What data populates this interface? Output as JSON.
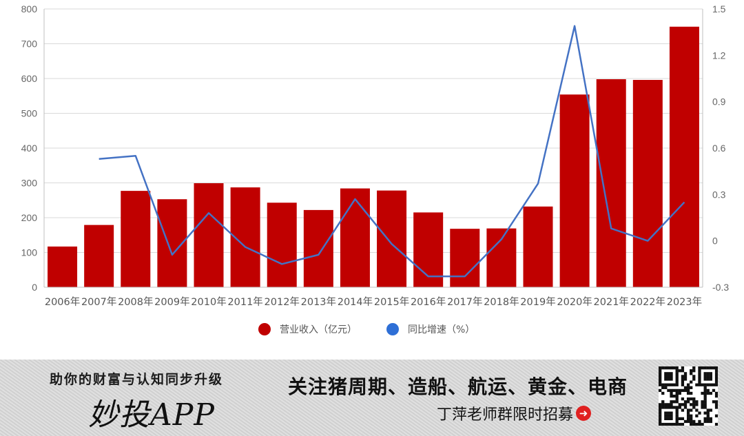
{
  "chart_data": {
    "type": "bar+line",
    "categories": [
      "2006年",
      "2007年",
      "2008年",
      "2009年",
      "2010年",
      "2011年",
      "2012年",
      "2013年",
      "2014年",
      "2015年",
      "2016年",
      "2017年",
      "2018年",
      "2019年",
      "2020年",
      "2021年",
      "2022年",
      "2023年"
    ],
    "series": [
      {
        "name": "营业收入（亿元）",
        "type": "bar",
        "axis": "left",
        "color": "#c00000",
        "values": [
          117,
          179,
          277,
          253,
          299,
          287,
          243,
          222,
          284,
          278,
          215,
          168,
          169,
          232,
          554,
          598,
          596,
          749
        ]
      },
      {
        "name": "同比增速（%）",
        "type": "line",
        "axis": "right",
        "color": "#4472c4",
        "values": [
          null,
          0.53,
          0.55,
          -0.09,
          0.18,
          -0.04,
          -0.15,
          -0.09,
          0.27,
          -0.02,
          -0.23,
          -0.23,
          0.01,
          0.37,
          1.39,
          0.08,
          0.0,
          0.25
        ]
      }
    ],
    "left_axis": {
      "min": 0,
      "max": 800,
      "ticks": [
        "0",
        "100",
        "200",
        "300",
        "400",
        "500",
        "600",
        "700",
        "800"
      ]
    },
    "right_axis": {
      "min": -0.3,
      "max": 1.5,
      "ticks": [
        "-0.3",
        "0",
        "0.3",
        "0.6",
        "0.9",
        "1.2",
        "1.5"
      ]
    },
    "grid": true,
    "legend_position": "bottom"
  },
  "banner": {
    "slogan": "助你的财富与认知同步升级",
    "brand": "妙投APP",
    "topics": "关注猪周期、造船、航运、黄金、电商",
    "recruit": "丁萍老师群限时招募",
    "arrow_icon": "arrow-right-circle-icon",
    "qr_icon": "qr-code-icon"
  }
}
